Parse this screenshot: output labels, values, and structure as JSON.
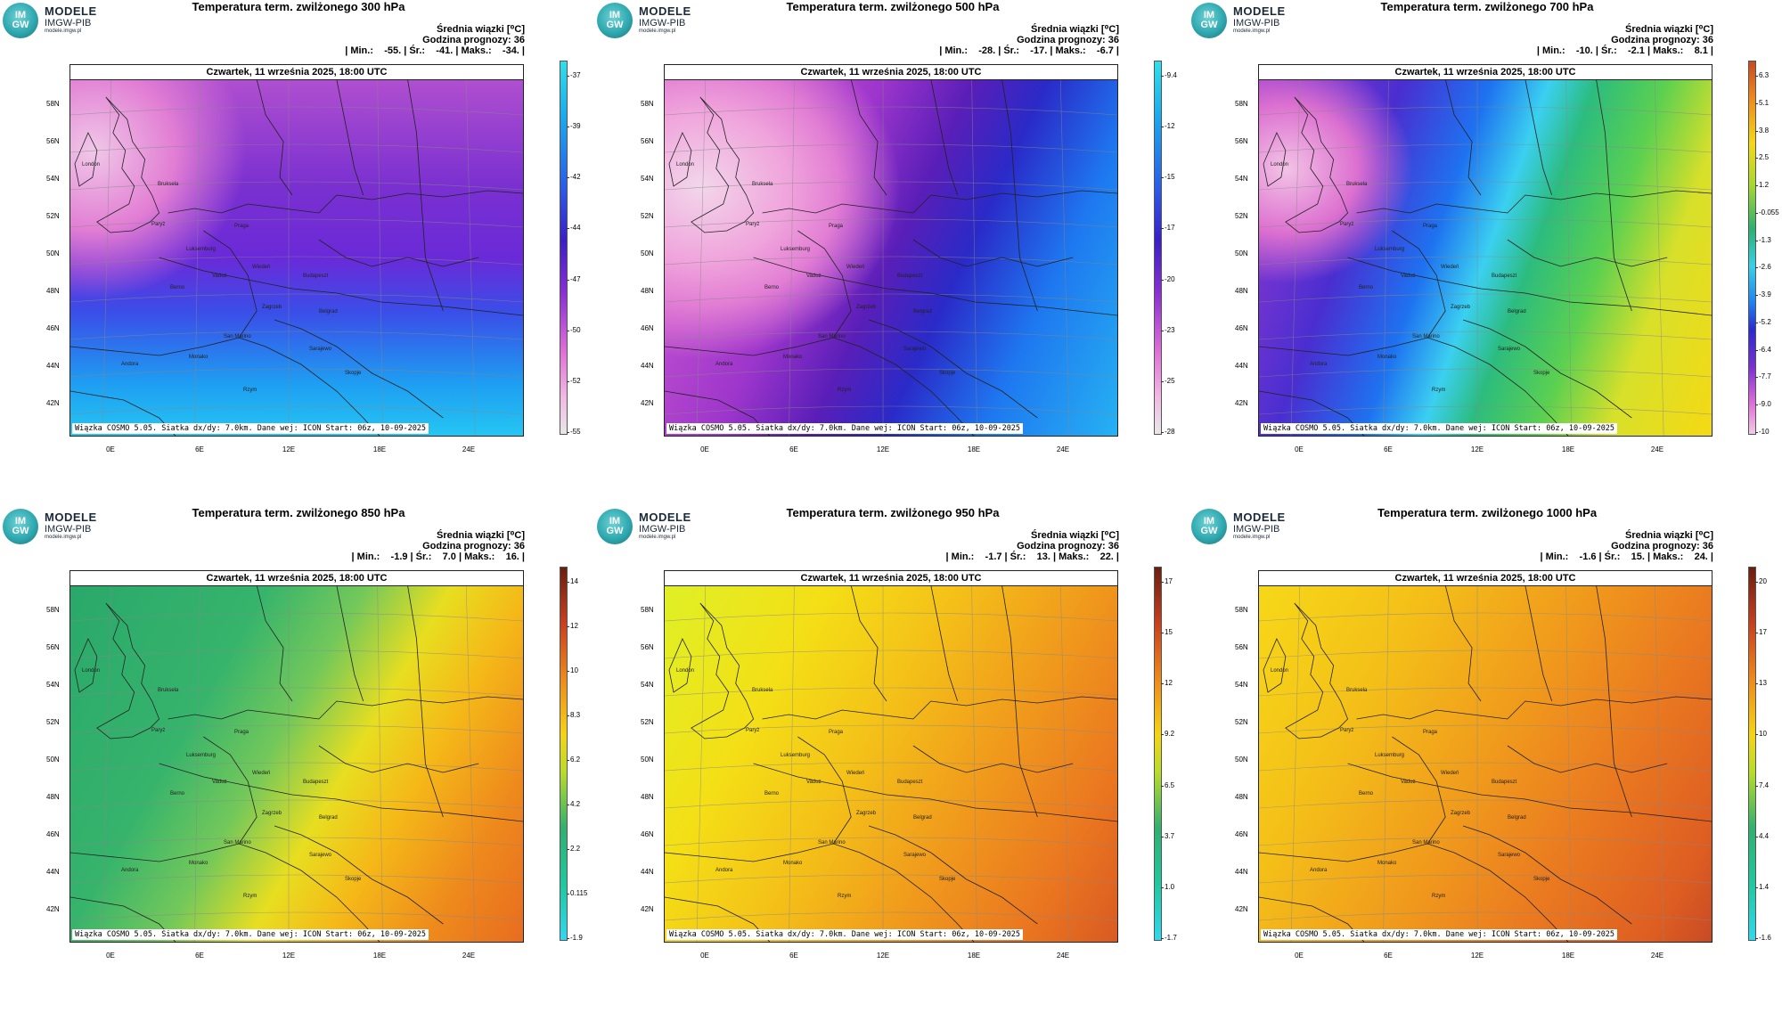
{
  "logo": {
    "circle_text": "IM\nGW",
    "name": "MODELE",
    "sub": "IMGW-PIB",
    "url": "modele.imgw.pl"
  },
  "common": {
    "legend_title": "Średnia wiązki [⁰C]",
    "forecast_hour": "Godzina prognozy: 36",
    "date": "Czwartek, 11 września 2025, 18:00 UTC",
    "footer": "Wiązka COSMO 5.05. Siatka dx/dy: 7.0km. Dane wej: ICON Start: 06z, 10-09-2025",
    "lat_labels": [
      "58N",
      "56N",
      "54N",
      "52N",
      "50N",
      "48N",
      "46N",
      "44N",
      "42N"
    ],
    "lon_labels": [
      "0E",
      "6E",
      "12E",
      "18E",
      "24E"
    ],
    "cities": [
      "London",
      "Bruksela",
      "Paryż",
      "Luksemburg",
      "Praga",
      "Wiedeń",
      "Budapeszt",
      "Berno",
      "Vaduz",
      "Zagrzeb",
      "Belgrad",
      "San Marino",
      "Sarajewo",
      "Monako",
      "Andora",
      "Rzym",
      "Skopje"
    ]
  },
  "panels": [
    {
      "title": "Temperatura term. zwilżonego 300 hPa",
      "stats": "| Min.:    -55. | Śr.:    -41. | Maks.:    -34. |",
      "field": "cold",
      "colorbar": {
        "scheme": "cold",
        "ticks": [
          "-37",
          "-39",
          "-42",
          "-44",
          "-47",
          "-50",
          "-52",
          "-55"
        ]
      }
    },
    {
      "title": "Temperatura term. zwilżonego 500 hPa",
      "stats": "| Min.:    -28. | Śr.:    -17. | Maks.:    -6.7 |",
      "field": "cold2",
      "colorbar": {
        "scheme": "cold",
        "ticks": [
          "-9.4",
          "-12",
          "-15",
          "-17",
          "-20",
          "-23",
          "-25",
          "-28"
        ]
      }
    },
    {
      "title": "Temperatura term. zwilżonego 700 hPa",
      "stats": "| Min.:    -10. | Śr.:    -2.1 | Maks.:    8.1 |",
      "field": "mixed",
      "colorbar": {
        "scheme": "full",
        "ticks": [
          "6.3",
          "5.1",
          "3.8",
          "2.5",
          "1.2",
          "-0.055",
          "-1.3",
          "-2.6",
          "-3.9",
          "-5.2",
          "-6.4",
          "-7.7",
          "-9.0",
          "-10"
        ]
      }
    },
    {
      "title": "Temperatura term. zwilżonego 850 hPa",
      "stats": "| Min.:    -1.9 | Śr.:    7.0 | Maks.:    16. |",
      "field": "warm850",
      "colorbar": {
        "scheme": "warm",
        "ticks": [
          "14",
          "12",
          "10",
          "8.3",
          "6.2",
          "4.2",
          "2.2",
          "0.115",
          "-1.9"
        ]
      }
    },
    {
      "title": "Temperatura term. zwilżonego 950 hPa",
      "stats": "| Min.:    -1.7 | Śr.:    13. | Maks.:    22. |",
      "field": "warm950",
      "colorbar": {
        "scheme": "warm",
        "ticks": [
          "17",
          "15",
          "12",
          "9.2",
          "6.5",
          "3.7",
          "1.0",
          "-1.7"
        ]
      }
    },
    {
      "title": "Temperatura term. zwilżonego 1000 hPa",
      "stats": "| Min.:    -1.6 | Śr.:    15. | Maks.:    24. |",
      "field": "warm1000",
      "colorbar": {
        "scheme": "warm",
        "ticks": [
          "20",
          "17",
          "13",
          "10",
          "7.4",
          "4.4",
          "1.4",
          "-1.6"
        ]
      }
    }
  ]
}
